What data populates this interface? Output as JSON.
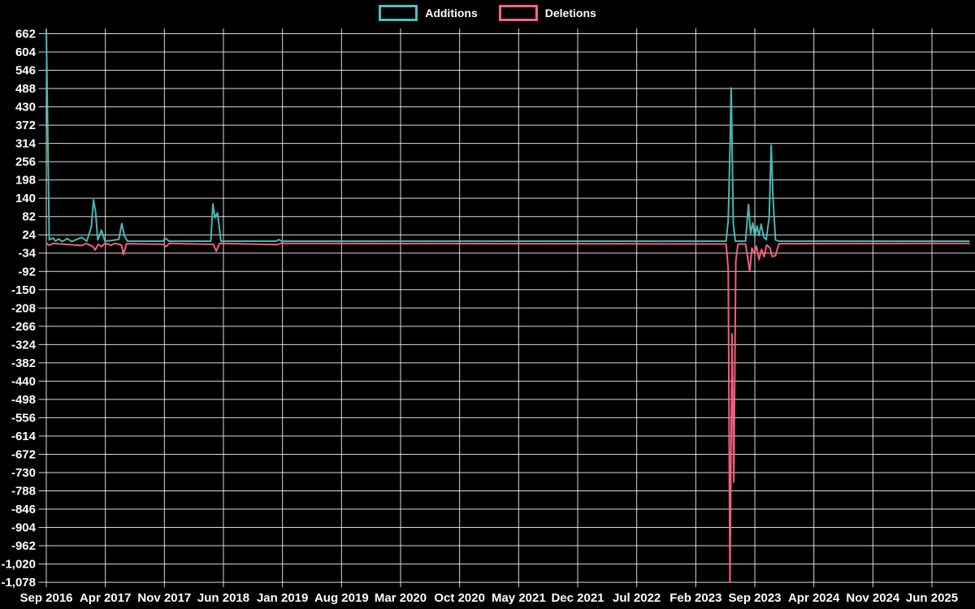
{
  "chart_data": {
    "type": "line",
    "title": "",
    "legend": {
      "position": "top",
      "items": [
        {
          "label": "Additions",
          "color": "#4bc0c0"
        },
        {
          "label": "Deletions",
          "color": "#ff6384"
        }
      ]
    },
    "x_axis": {
      "unit": "months since Sep 2016",
      "months_per_tick": 7,
      "range_months": [
        0,
        110.2
      ],
      "tick_labels": [
        "Sep 2016",
        "Apr 2017",
        "Nov 2017",
        "Jun 2018",
        "Jan 2019",
        "Aug 2019",
        "Mar 2020",
        "Oct 2020",
        "May 2021",
        "Dec 2021",
        "Jul 2022",
        "Feb 2023",
        "Sep 2023",
        "Apr 2024",
        "Nov 2024",
        "Jun 2025"
      ]
    },
    "y_axis": {
      "step": 58,
      "range": [
        -1078,
        678
      ],
      "ticks": [
        662,
        604,
        546,
        488,
        430,
        372,
        314,
        256,
        198,
        140,
        82,
        24,
        -34,
        -92,
        -150,
        -208,
        -266,
        -324,
        -382,
        -440,
        -498,
        -556,
        -614,
        -672,
        -730,
        -788,
        -846,
        -904,
        -962,
        -1020,
        -1078
      ]
    },
    "series": [
      {
        "name": "Additions",
        "color": "#4bc0c0",
        "points": [
          [
            0,
            675
          ],
          [
            0.35,
            8
          ],
          [
            0.8,
            14
          ],
          [
            1.1,
            4
          ],
          [
            1.45,
            11
          ],
          [
            1.9,
            3
          ],
          [
            2.5,
            12
          ],
          [
            3,
            3
          ],
          [
            4.2,
            16
          ],
          [
            4.8,
            4
          ],
          [
            5.35,
            50
          ],
          [
            5.6,
            135
          ],
          [
            5.85,
            95
          ],
          [
            6.1,
            8
          ],
          [
            6.55,
            39
          ],
          [
            6.95,
            4
          ],
          [
            7.7,
            6
          ],
          [
            8.6,
            10
          ],
          [
            8.95,
            60
          ],
          [
            9.25,
            22
          ],
          [
            9.6,
            4
          ],
          [
            13.8,
            4
          ],
          [
            14.15,
            13
          ],
          [
            14.55,
            4
          ],
          [
            19.5,
            4
          ],
          [
            19.75,
            122
          ],
          [
            20,
            78
          ],
          [
            20.3,
            94
          ],
          [
            20.7,
            4
          ],
          [
            27.3,
            4
          ],
          [
            27.55,
            9
          ],
          [
            27.9,
            4
          ],
          [
            80.6,
            4
          ],
          [
            80.85,
            70
          ],
          [
            81.05,
            290
          ],
          [
            81.2,
            490
          ],
          [
            81.45,
            60
          ],
          [
            81.7,
            4
          ],
          [
            82.9,
            4
          ],
          [
            83.25,
            120
          ],
          [
            83.5,
            28
          ],
          [
            83.75,
            62
          ],
          [
            84,
            18
          ],
          [
            84.25,
            52
          ],
          [
            84.5,
            22
          ],
          [
            84.75,
            58
          ],
          [
            85.05,
            18
          ],
          [
            85.35,
            8
          ],
          [
            85.7,
            80
          ],
          [
            85.95,
            309
          ],
          [
            86.15,
            148
          ],
          [
            86.45,
            8
          ],
          [
            86.8,
            4
          ],
          [
            109.4,
            4
          ]
        ]
      },
      {
        "name": "Deletions",
        "color": "#ff6384",
        "points": [
          [
            0,
            -3
          ],
          [
            0.35,
            -9
          ],
          [
            0.8,
            -3
          ],
          [
            4.2,
            -10
          ],
          [
            4.7,
            -3
          ],
          [
            5.5,
            -12
          ],
          [
            5.8,
            -24
          ],
          [
            6.15,
            -6
          ],
          [
            6.55,
            -13
          ],
          [
            6.95,
            -3
          ],
          [
            7.7,
            -9
          ],
          [
            8.1,
            -3
          ],
          [
            8.9,
            -8
          ],
          [
            9.15,
            -38
          ],
          [
            9.5,
            -4
          ],
          [
            13.9,
            -6
          ],
          [
            14.2,
            -13
          ],
          [
            14.6,
            -3
          ],
          [
            19.8,
            -6
          ],
          [
            20.15,
            -28
          ],
          [
            20.55,
            -3
          ],
          [
            27.4,
            -7
          ],
          [
            27.8,
            -3
          ],
          [
            80.6,
            -5
          ],
          [
            80.85,
            -85
          ],
          [
            81.05,
            -1078
          ],
          [
            81.3,
            -290
          ],
          [
            81.5,
            -760
          ],
          [
            81.75,
            -60
          ],
          [
            82,
            -5
          ],
          [
            82.9,
            -5
          ],
          [
            83.15,
            -48
          ],
          [
            83.4,
            -92
          ],
          [
            83.65,
            -18
          ],
          [
            83.95,
            -35
          ],
          [
            84.2,
            -12
          ],
          [
            84.5,
            -55
          ],
          [
            84.8,
            -22
          ],
          [
            85.1,
            -45
          ],
          [
            85.4,
            -8
          ],
          [
            85.8,
            -18
          ],
          [
            86.05,
            -45
          ],
          [
            86.45,
            -42
          ],
          [
            86.85,
            -4
          ],
          [
            109.4,
            -3
          ]
        ]
      }
    ],
    "grid": true
  },
  "style": {
    "background": "#000000",
    "grid_color": "rgba(255,255,255,0.85)",
    "text_color": "#ffffff"
  }
}
